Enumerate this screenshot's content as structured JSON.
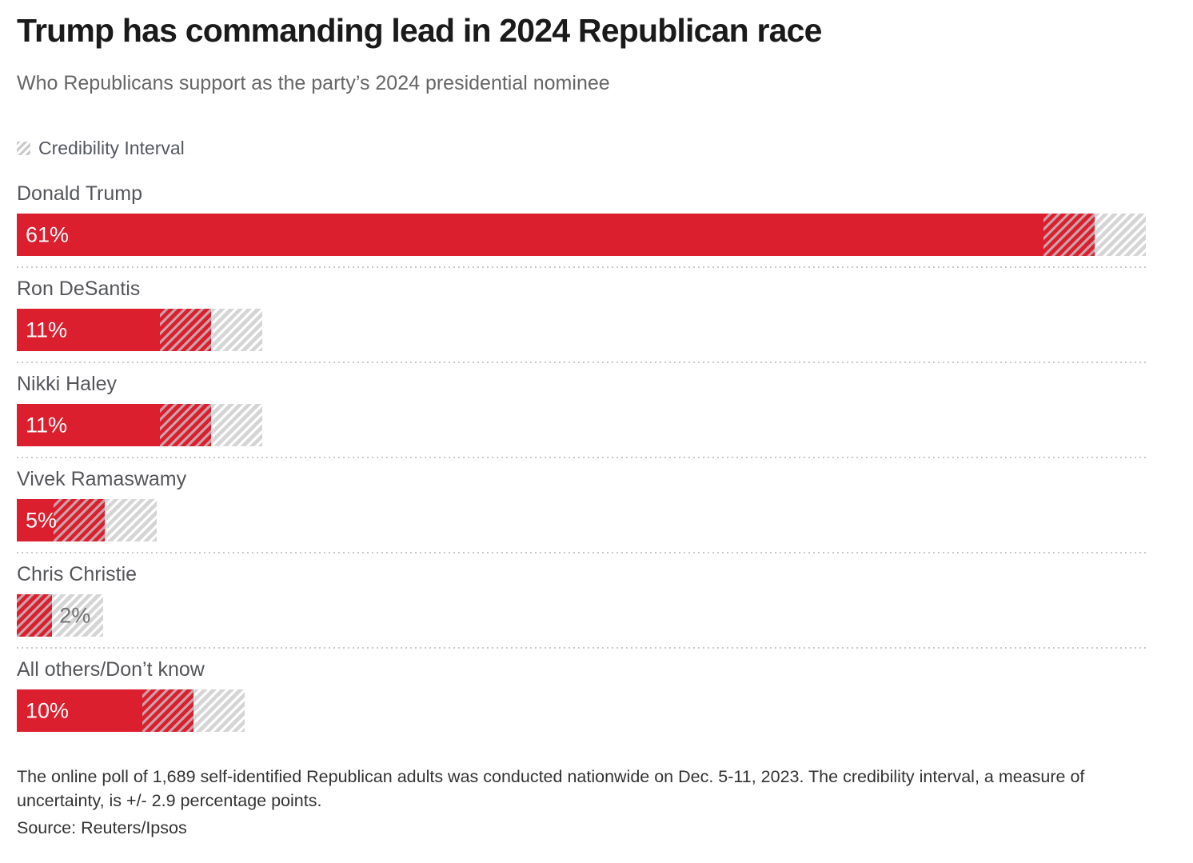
{
  "header": {
    "title": "Trump has commanding lead in 2024 Republican race",
    "subtitle": "Who Republicans support as the party’s 2024 presidential nominee"
  },
  "legend": {
    "label": "Credibility Interval",
    "icon": "hatch-swatch-icon"
  },
  "chart_data": {
    "type": "bar",
    "orientation": "horizontal",
    "title": "Trump has commanding lead in 2024 Republican race",
    "subtitle": "Who Republicans support as the party’s 2024 presidential nominee",
    "unit": "%",
    "credibility_interval_points": 2.9,
    "xlim": [
      0,
      63.9
    ],
    "grid": false,
    "legend_entries": [
      "Credibility Interval"
    ],
    "categories": [
      "Donald Trump",
      "Ron DeSantis",
      "Nikki Haley",
      "Vivek Ramaswamy",
      "Chris Christie",
      "All others/Don’t know"
    ],
    "values": [
      61,
      11,
      11,
      5,
      2,
      10
    ],
    "value_labels": [
      "61%",
      "11%",
      "11%",
      "5%",
      "2%",
      "10%"
    ],
    "label_inside": [
      true,
      true,
      true,
      true,
      false,
      true
    ]
  },
  "footer": {
    "note": "The online poll of 1,689 self-identified Republican adults was conducted nationwide on Dec. 5-11, 2023. The credibility interval, a measure of uncertainty, is +/- 2.9 percentage points.",
    "source": "Source: Reuters/Ipsos"
  },
  "colors": {
    "bar_red": "#DB1F2E",
    "hatch_red_light": "#C9A2A8",
    "hatch_gray_stripe": "#D5D5D5",
    "title_text": "#1A1A1A",
    "subtitle_text": "#666666",
    "category_label_text": "#55565A",
    "outside_value_text": "#717274"
  }
}
